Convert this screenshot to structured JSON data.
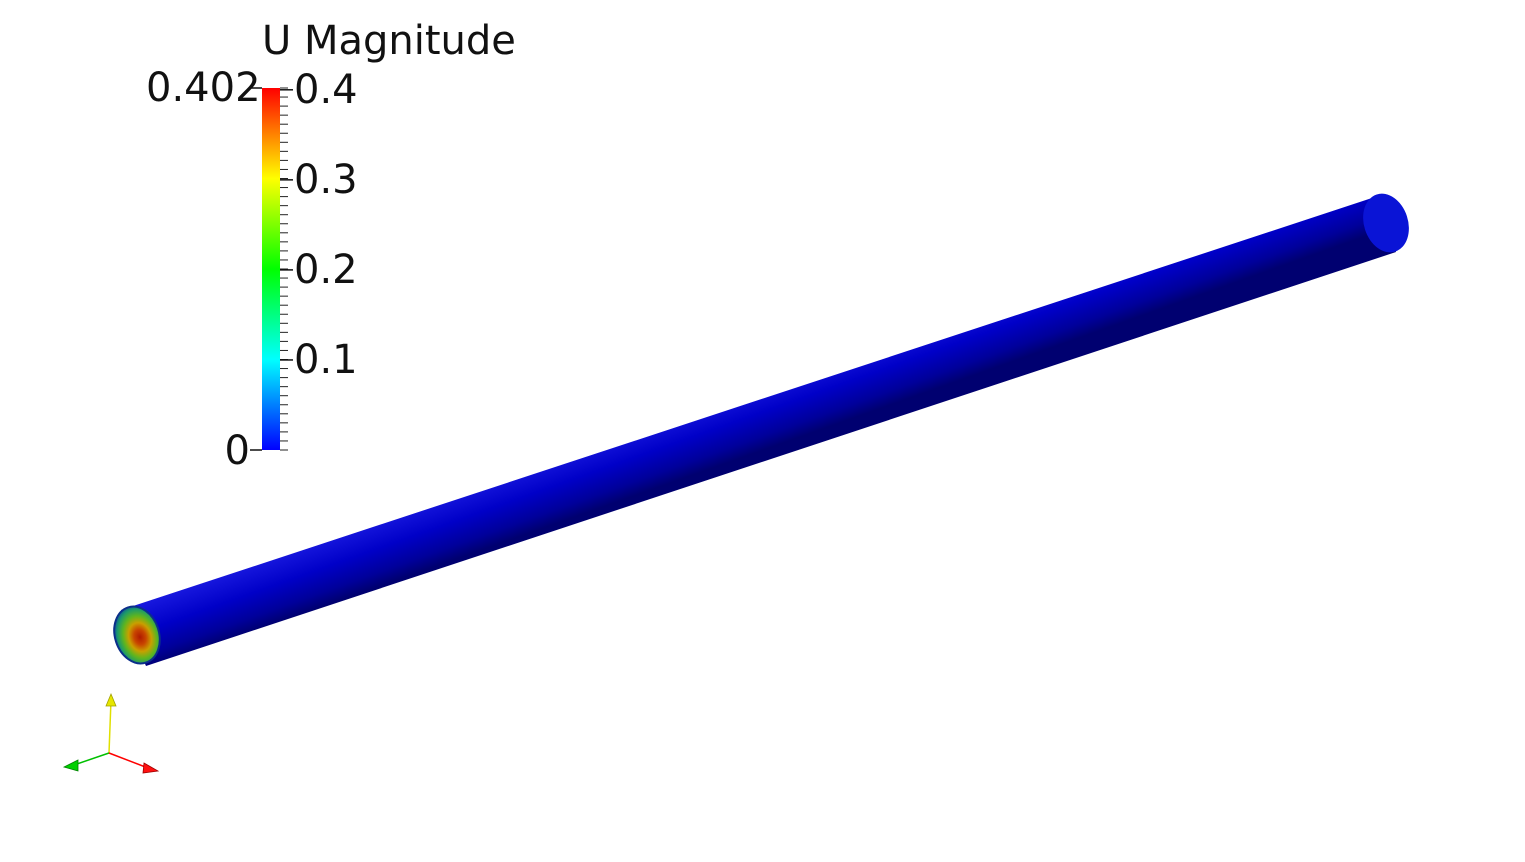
{
  "legend": {
    "title": "U Magnitude",
    "range_max_label": "0.402",
    "range_min_label": "0",
    "range": [
      0,
      0.402
    ],
    "ticks": [
      {
        "value": 0.4,
        "label": "0.4"
      },
      {
        "value": 0.3,
        "label": "0.3"
      },
      {
        "value": 0.2,
        "label": "0.2"
      },
      {
        "value": 0.1,
        "label": "0.1"
      }
    ],
    "colormap": [
      "#0000ff",
      "#00ffff",
      "#00ff00",
      "#ffff00",
      "#ff0000"
    ]
  },
  "scene": {
    "object": "pipe",
    "inlet_face_colors": [
      "#b01a00",
      "#d26c00",
      "#5fb51e",
      "#1c9a6a",
      "#0a3fa8"
    ],
    "pipe_color": "#0000cc"
  },
  "orientation_axes": {
    "x_color": "#ff0000",
    "y_color": "#ffff00",
    "z_color": "#00d000"
  }
}
